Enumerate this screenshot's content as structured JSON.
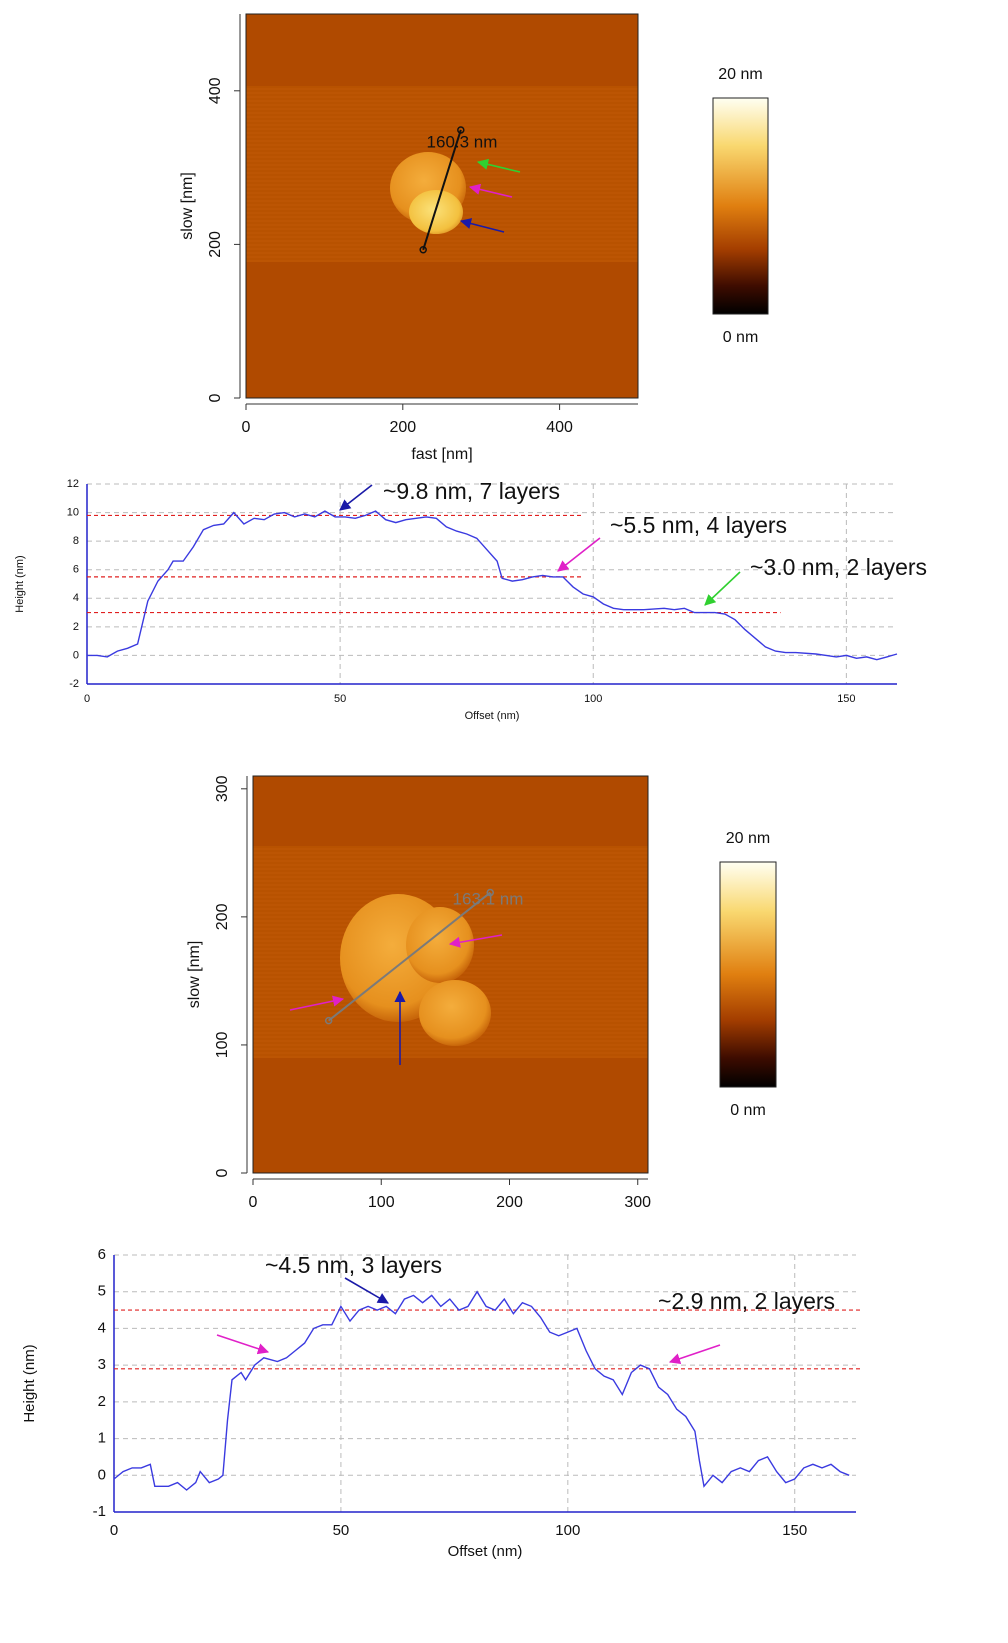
{
  "chart_data": [
    {
      "type": "image",
      "xlabel": "fast [nm]",
      "ylabel": "slow [nm]",
      "xlim": [
        0,
        500
      ],
      "ylim": [
        0,
        500
      ],
      "xticks": [
        0,
        200,
        400
      ],
      "yticks": [
        0,
        200,
        400
      ],
      "colorbar": {
        "lim": [
          0,
          20
        ],
        "ticks": [
          {
            "value": 0,
            "label": "0 nm"
          },
          {
            "value": 20,
            "label": "20 nm"
          }
        ]
      },
      "measure": {
        "x": [
          226,
          274
        ],
        "y": [
          193,
          349
        ],
        "label": "160.3 nm"
      }
    },
    {
      "type": "line",
      "xlabel": "Offset (nm)",
      "ylabel": "Height (nm)",
      "xlim": [
        0,
        160
      ],
      "ylim": [
        -2,
        12
      ],
      "xticks": [
        0,
        50,
        100,
        150
      ],
      "yticks": [
        -2,
        0,
        2,
        4,
        6,
        8,
        10,
        12
      ],
      "grid": true,
      "color": "#3a3ae0",
      "x": [
        0,
        2,
        4,
        6,
        8,
        10,
        12,
        14,
        16,
        17,
        19,
        21,
        23,
        25,
        27,
        29,
        31,
        33,
        35,
        37,
        39,
        41,
        43,
        45,
        47,
        49,
        51,
        53,
        55,
        57,
        59,
        61,
        63,
        65,
        67,
        69,
        71,
        73,
        75,
        77,
        79,
        81,
        82,
        84,
        86,
        88,
        90,
        92,
        94,
        96,
        98,
        100,
        102,
        104,
        106,
        110,
        114,
        116,
        118,
        120,
        124,
        126,
        128,
        130,
        132,
        134,
        136,
        138,
        140,
        144,
        146,
        148,
        150,
        152,
        154,
        156,
        158,
        160
      ],
      "values": [
        0,
        0,
        -0.1,
        0.3,
        0.5,
        0.8,
        3.8,
        5.2,
        6,
        6.6,
        6.6,
        7.6,
        8.8,
        9.1,
        9.2,
        10,
        9.2,
        9.6,
        9.5,
        9.9,
        10,
        9.7,
        9.9,
        9.7,
        10.1,
        9.7,
        9.7,
        9.6,
        9.8,
        10.1,
        9.5,
        9.3,
        9.5,
        9.6,
        9.7,
        9.6,
        9,
        8.7,
        8.5,
        8.2,
        7.4,
        6.6,
        5.4,
        5.2,
        5.3,
        5.5,
        5.6,
        5.5,
        5.5,
        4.8,
        4.3,
        4.1,
        3.6,
        3.3,
        3.2,
        3.2,
        3.3,
        3.2,
        3.3,
        3,
        3,
        2.9,
        2.5,
        1.8,
        1.2,
        0.6,
        0.3,
        0.2,
        0.2,
        0.1,
        0,
        -0.1,
        0,
        -0.2,
        -0.1,
        -0.3,
        -0.1,
        0.1
      ],
      "hlines": [
        {
          "value": 9.8,
          "x_end": 98
        },
        {
          "value": 5.5,
          "x_end": 98
        },
        {
          "value": 3.0,
          "x_end": 137
        }
      ],
      "annotations": [
        "~9.8 nm, 7 layers",
        "~5.5 nm, 4 layers",
        "~3.0 nm, 2 layers"
      ]
    },
    {
      "type": "image",
      "xlabel": null,
      "ylabel": "slow [nm]",
      "xlim": [
        0,
        308
      ],
      "ylim": [
        0,
        310
      ],
      "xticks": [
        0,
        100,
        200,
        300
      ],
      "yticks": [
        0,
        100,
        200,
        300
      ],
      "colorbar": {
        "lim": [
          0,
          20
        ],
        "ticks": [
          {
            "value": 0,
            "label": "0 nm"
          },
          {
            "value": 20,
            "label": "20 nm"
          }
        ]
      },
      "measure": {
        "x": [
          59,
          185
        ],
        "y": [
          119,
          219
        ],
        "label": "163.1 nm"
      }
    },
    {
      "type": "line",
      "xlabel": "Offset (nm)",
      "ylabel": "Height (nm)",
      "xlim": [
        0,
        163.5
      ],
      "ylim": [
        -1,
        6
      ],
      "xticks": [
        0,
        50,
        100,
        150
      ],
      "yticks": [
        -1,
        0,
        1,
        2,
        3,
        4,
        5,
        6
      ],
      "grid": true,
      "color": "#3a3ae0",
      "x": [
        0,
        2,
        4,
        6,
        8,
        9,
        12,
        14,
        16,
        18,
        19,
        21,
        23,
        24,
        25,
        26,
        28,
        29,
        31,
        33,
        36,
        38,
        40,
        42,
        44,
        46,
        48,
        50,
        52,
        54,
        56,
        58,
        60,
        62,
        64,
        66,
        68,
        70,
        72,
        74,
        76,
        78,
        80,
        82,
        84,
        86,
        88,
        90,
        92,
        94,
        96,
        98,
        100,
        102,
        104,
        106,
        108,
        110,
        112,
        114,
        116,
        118,
        120,
        122,
        124,
        126,
        128,
        129,
        130,
        132,
        134,
        136,
        138,
        140,
        142,
        144,
        146,
        148,
        150,
        152,
        154,
        156,
        158,
        160,
        162
      ],
      "values": [
        -0.1,
        0.1,
        0.2,
        0.2,
        0.3,
        -0.3,
        -0.3,
        -0.2,
        -0.4,
        -0.2,
        0.1,
        -0.2,
        -0.1,
        0,
        1.5,
        2.6,
        2.8,
        2.6,
        3,
        3.2,
        3.1,
        3.2,
        3.4,
        3.6,
        4,
        4.1,
        4.1,
        4.6,
        4.2,
        4.5,
        4.6,
        4.5,
        4.6,
        4.4,
        4.8,
        4.9,
        4.7,
        4.9,
        4.6,
        4.8,
        4.5,
        4.6,
        5,
        4.6,
        4.5,
        4.8,
        4.4,
        4.7,
        4.6,
        4.3,
        3.9,
        3.8,
        3.9,
        4,
        3.4,
        2.9,
        2.7,
        2.6,
        2.2,
        2.8,
        3,
        2.9,
        2.4,
        2.2,
        1.8,
        1.6,
        1.2,
        0.4,
        -0.3,
        0,
        -0.2,
        0.1,
        0.2,
        0.1,
        0.4,
        0.5,
        0.1,
        -0.2,
        -0.1,
        0.2,
        0.3,
        0.2,
        0.3,
        0.1,
        0
      ],
      "hlines": [
        {
          "value": 4.5
        },
        {
          "value": 2.9
        }
      ],
      "annotations": [
        "~4.5 nm, 3 layers",
        "~2.9 nm, 2 layers"
      ]
    }
  ]
}
